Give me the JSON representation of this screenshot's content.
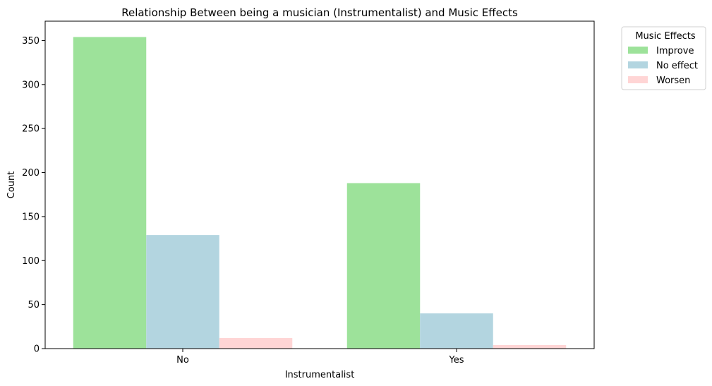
{
  "chart_data": {
    "type": "bar",
    "title": "Relationship Between being a musician (Instrumentalist) and Music Effects",
    "xlabel": "Instrumentalist",
    "ylabel": "Count",
    "categories": [
      "No",
      "Yes"
    ],
    "series": [
      {
        "name": "Improve",
        "color": "#9de29a",
        "values": [
          354,
          188
        ]
      },
      {
        "name": "No effect",
        "color": "#b3d5e0",
        "values": [
          129,
          40
        ]
      },
      {
        "name": "Worsen",
        "color": "#ffd5d5",
        "values": [
          12,
          4
        ]
      }
    ],
    "ylim": [
      0,
      372
    ],
    "yticks": [
      0,
      50,
      100,
      150,
      200,
      250,
      300,
      350
    ],
    "grid": false,
    "legend": {
      "title": "Music Effects",
      "placement": "outside-top-right"
    }
  }
}
